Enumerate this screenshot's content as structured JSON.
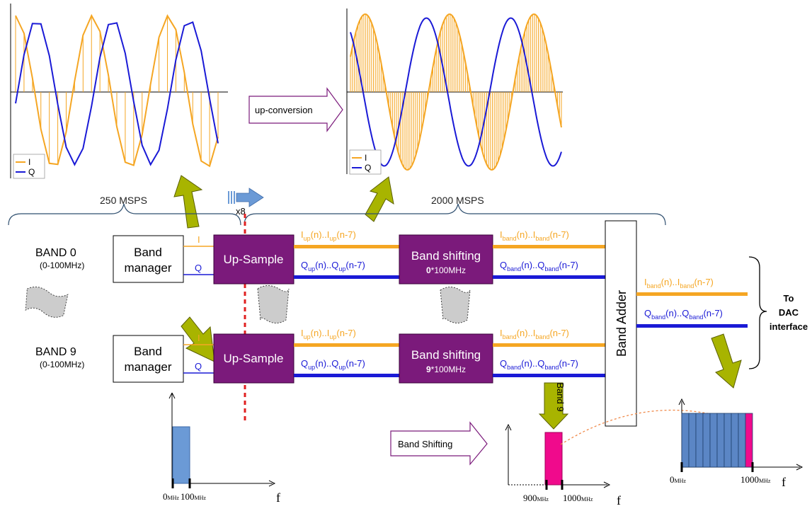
{
  "rates": {
    "low": "250 MSPS",
    "high": "2000 MSPS",
    "factor": "x8"
  },
  "plots": {
    "left": {
      "legend": [
        "I",
        "Q"
      ]
    },
    "right": {
      "legend": [
        "I",
        "Q"
      ]
    }
  },
  "colors": {
    "i": "#f5a623",
    "q": "#1a1ad6",
    "block": "#7b1a7b",
    "olive": "#a8b400",
    "pink": "#f00a8c",
    "spectrum": "#5b86c5"
  },
  "upconversion_label": "up-conversion",
  "bands": [
    {
      "name": "BAND 0",
      "range": "(0-100MHz)",
      "shift_factor": "0"
    },
    {
      "name": "BAND 9",
      "range": "(0-100MHz)",
      "shift_factor": "9"
    }
  ],
  "blocks": {
    "band_manager": "Band manager",
    "band_manager_line1": "Band",
    "band_manager_line2": "manager",
    "upsample": "Up-Sample",
    "band_shifting": "Band shifting",
    "band_shifting_suffix": "*100MHz",
    "band_adder": "Band Adder"
  },
  "signals": {
    "i_in": "I",
    "q_in": "Q",
    "prefix_i": "I",
    "prefix_q": "Q",
    "sub_up": "up",
    "sub_band": "band",
    "n": "(n)..",
    "n7": "(n-7)"
  },
  "output": {
    "to": "To",
    "dac": "DAC",
    "interface": "interface"
  },
  "band9_label": "Band 9",
  "band_shifting_arrow": "Band Shifting",
  "spectra": {
    "left": {
      "x_ticks": [
        "0",
        "100"
      ],
      "unit": "MHz",
      "axis": "f"
    },
    "middle": {
      "x_ticks": [
        "900",
        "1000"
      ],
      "unit": "MHz",
      "axis": "f"
    },
    "right": {
      "x_ticks": [
        "0",
        "1000"
      ],
      "unit": "MHz",
      "axis": "f"
    }
  }
}
